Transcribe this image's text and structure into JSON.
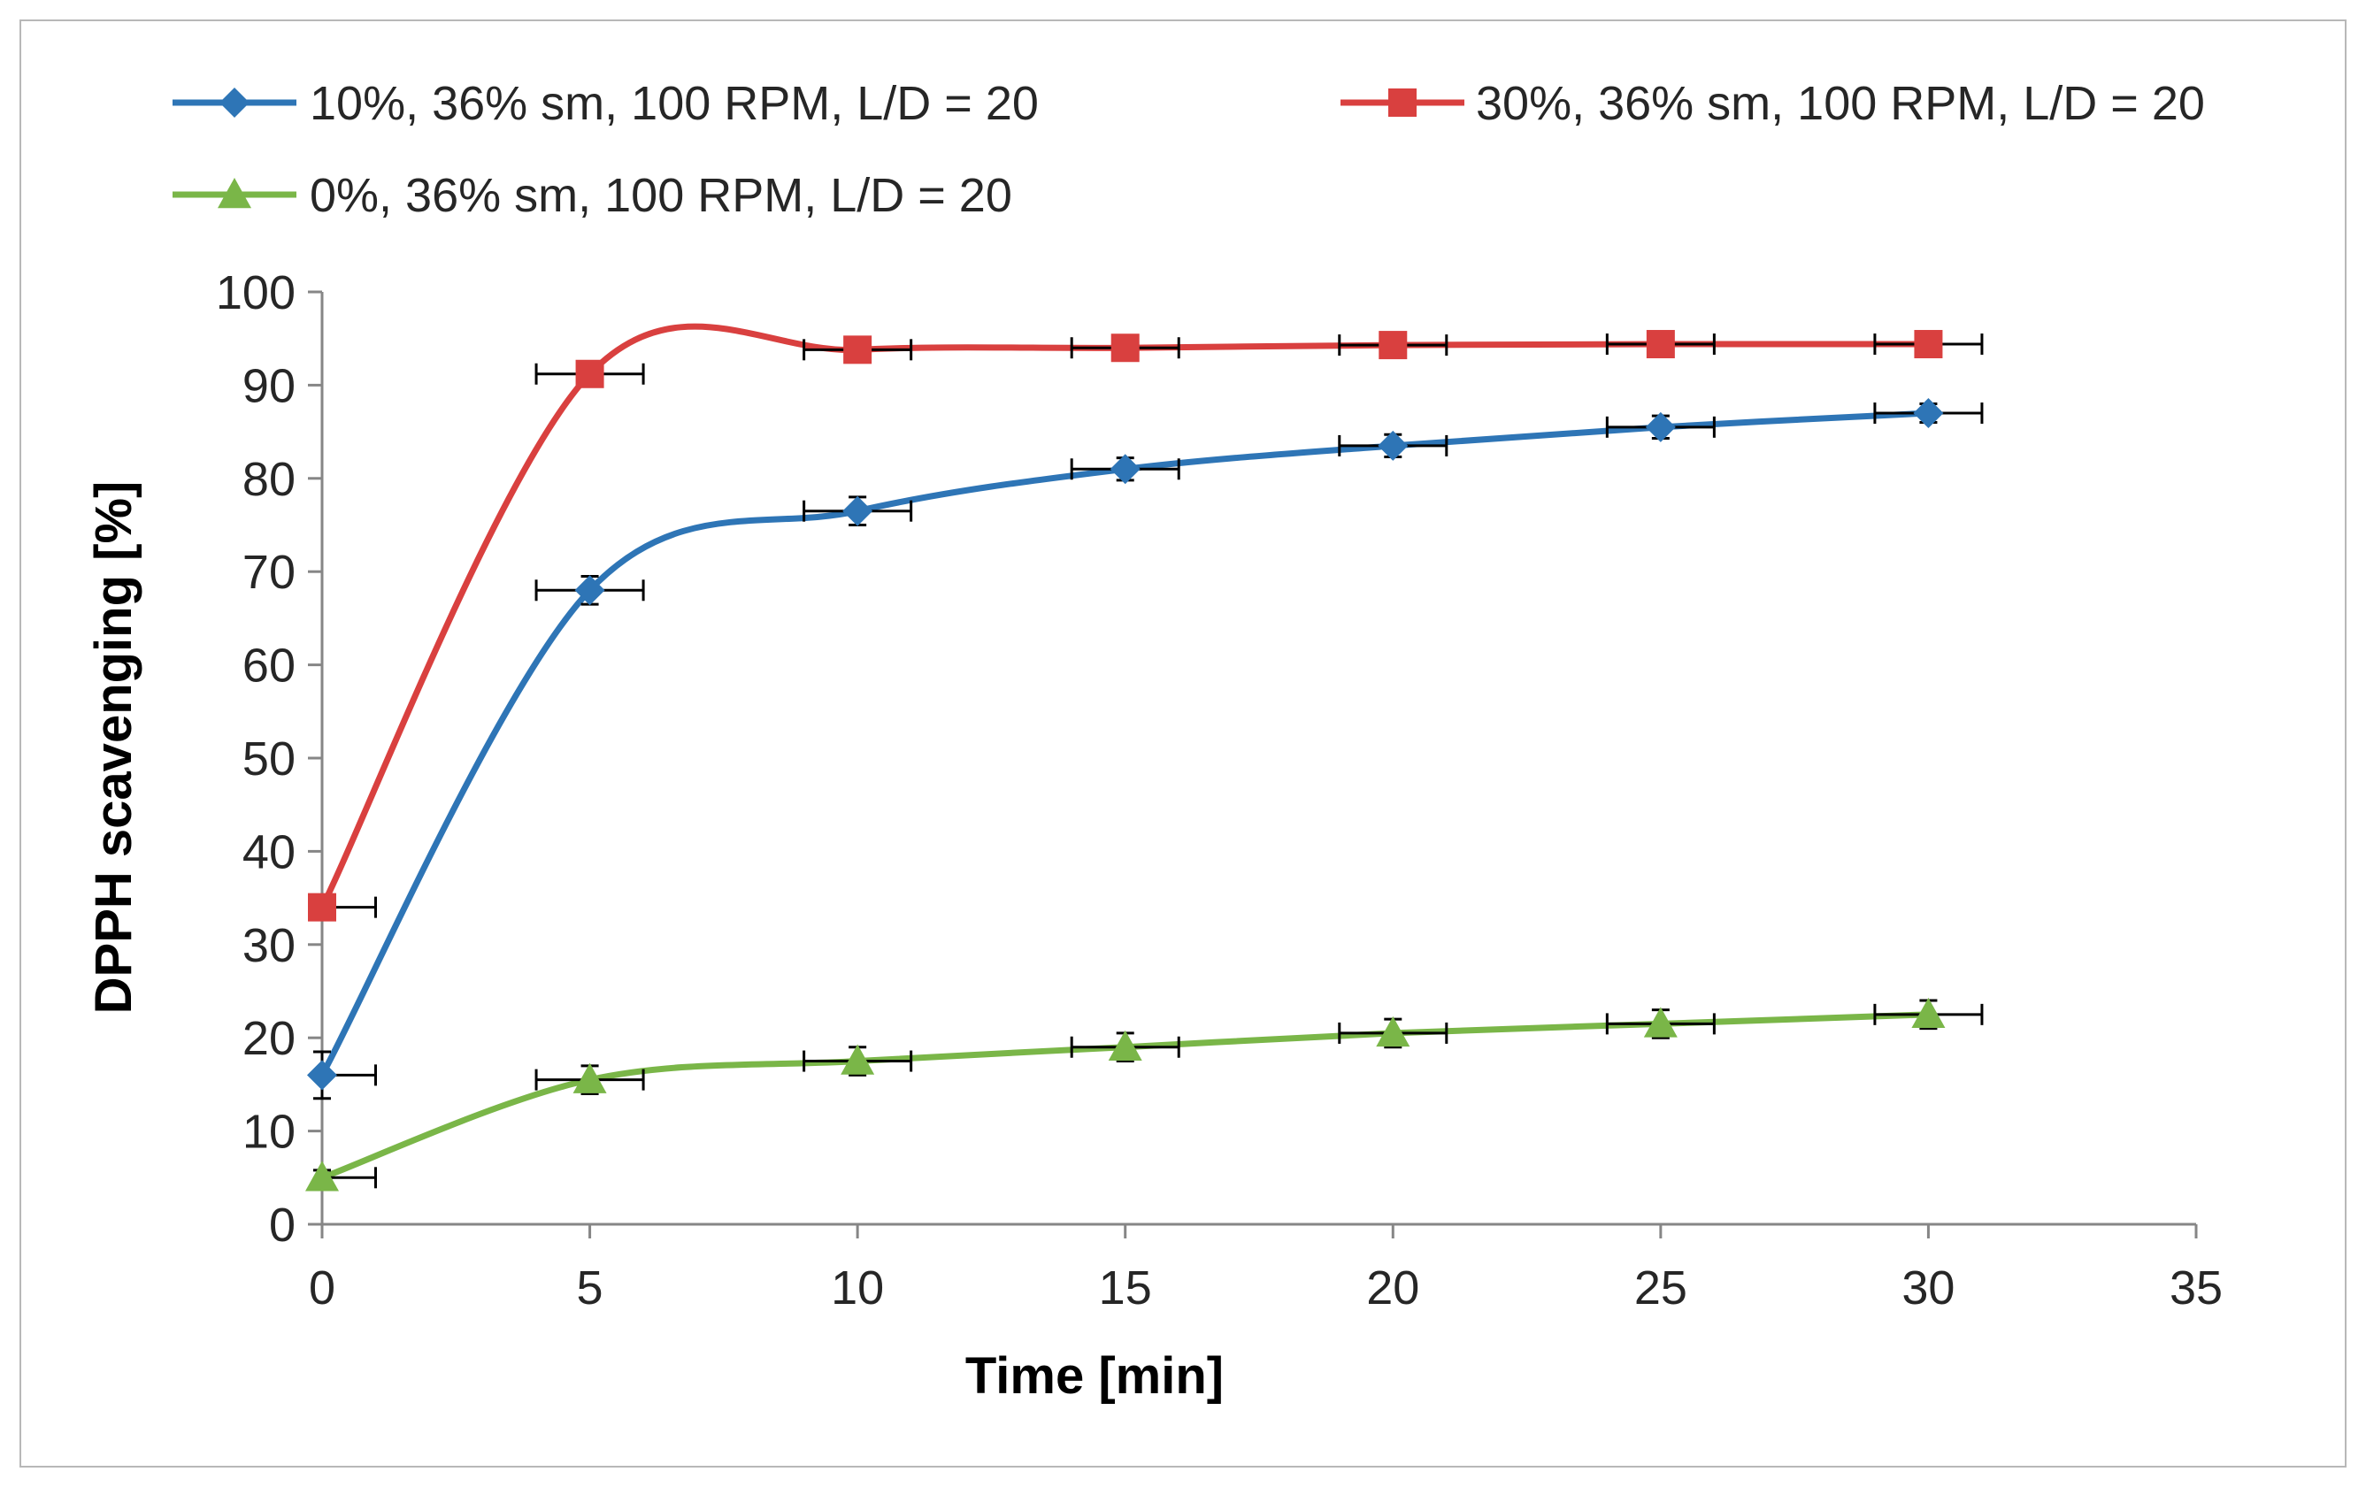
{
  "chart_data": {
    "type": "line",
    "title": "",
    "xlabel": "Time [min]",
    "ylabel": "DPPH scavenging [%]",
    "xlim": [
      0,
      35
    ],
    "ylim": [
      0,
      100
    ],
    "x_ticks": [
      0,
      5,
      10,
      15,
      20,
      25,
      30,
      35
    ],
    "y_ticks": [
      0,
      10,
      20,
      30,
      40,
      50,
      60,
      70,
      80,
      90,
      100
    ],
    "grid": false,
    "legend_position": "top",
    "x": [
      0,
      5,
      10,
      15,
      20,
      25,
      30
    ],
    "x_error": 1,
    "series": [
      {
        "name": "10%, 36% sm, 100 RPM, L/D = 20",
        "color": "#2e75b6",
        "marker": "diamond",
        "values": [
          16,
          68,
          76.5,
          81,
          83.5,
          85.5,
          87
        ],
        "y_error": [
          2.5,
          1.5,
          1.5,
          1.2,
          1.2,
          1.2,
          1.0
        ]
      },
      {
        "name": "30%, 36% sm, 100 RPM, L/D = 20",
        "color": "#d9403f",
        "marker": "square",
        "values": [
          34,
          91.2,
          93.8,
          94,
          94.3,
          94.4,
          94.4
        ],
        "y_error": [
          0.8,
          0.8,
          0.6,
          0.6,
          0.6,
          0.6,
          0.6
        ]
      },
      {
        "name": "0%, 36% sm, 100 RPM, L/D = 20",
        "color": "#7ab648",
        "marker": "triangle",
        "values": [
          5,
          15.5,
          17.5,
          19,
          20.5,
          21.5,
          22.5
        ],
        "y_error": [
          0.8,
          1.5,
          1.5,
          1.5,
          1.5,
          1.5,
          1.5
        ]
      }
    ]
  }
}
